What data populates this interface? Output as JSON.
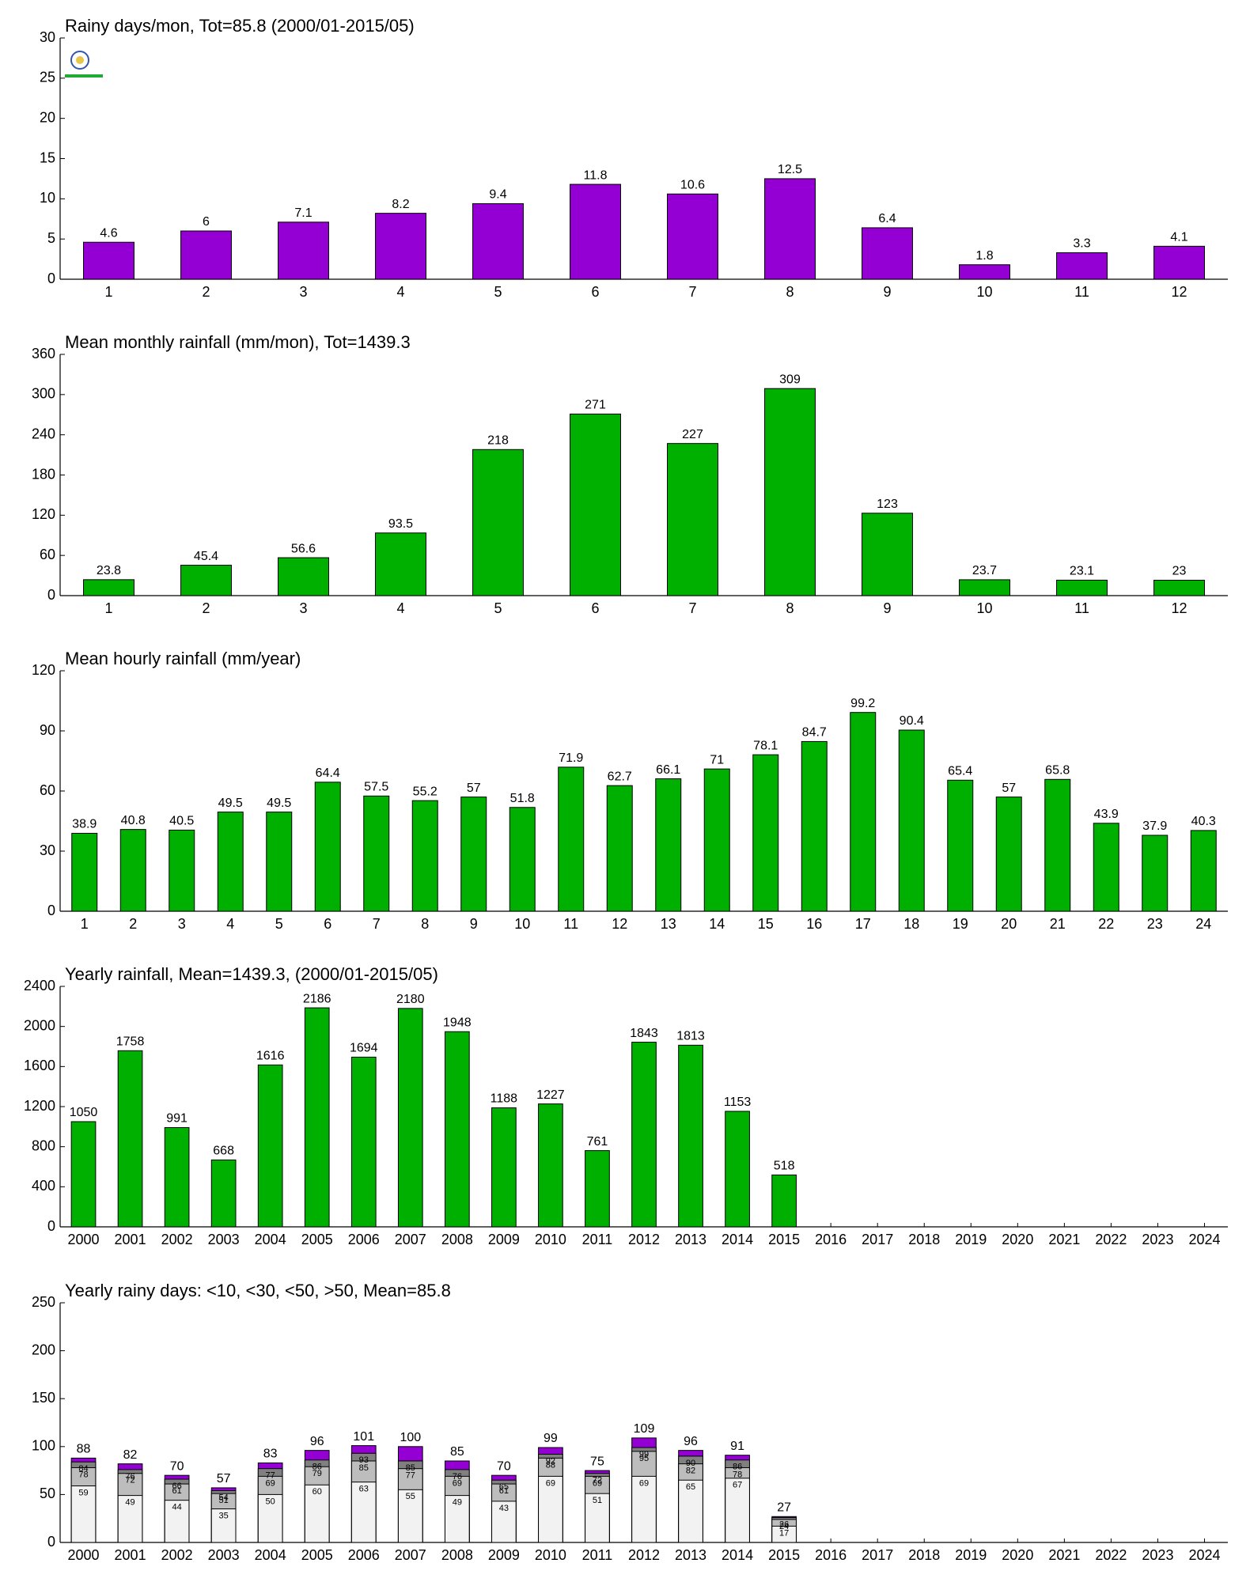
{
  "chart_data": [
    {
      "type": "bar",
      "title": "Rainy days/mon, Tot=85.8 (2000/01-2015/05)",
      "categories": [
        "1",
        "2",
        "3",
        "4",
        "5",
        "6",
        "7",
        "8",
        "9",
        "10",
        "11",
        "12"
      ],
      "values": [
        4.6,
        6,
        7.1,
        8.2,
        9.4,
        11.8,
        10.6,
        12.5,
        6.4,
        1.8,
        3.3,
        4.1
      ],
      "color": "#9400d3",
      "ylim": [
        0,
        30
      ],
      "yticks": [
        0,
        5,
        10,
        15,
        20,
        25,
        30
      ]
    },
    {
      "type": "bar",
      "title": "Mean monthly rainfall (mm/mon), Tot=1439.3",
      "categories": [
        "1",
        "2",
        "3",
        "4",
        "5",
        "6",
        "7",
        "8",
        "9",
        "10",
        "11",
        "12"
      ],
      "values": [
        23.8,
        45.4,
        56.6,
        93.5,
        218,
        271,
        227,
        309,
        123,
        23.7,
        23.1,
        23
      ],
      "color": "#00b000",
      "ylim": [
        0,
        360
      ],
      "yticks": [
        0,
        60,
        120,
        180,
        240,
        300,
        360
      ]
    },
    {
      "type": "bar",
      "title": "Mean hourly rainfall (mm/year)",
      "categories": [
        "1",
        "2",
        "3",
        "4",
        "5",
        "6",
        "7",
        "8",
        "9",
        "10",
        "11",
        "12",
        "13",
        "14",
        "15",
        "16",
        "17",
        "18",
        "19",
        "20",
        "21",
        "22",
        "23",
        "24"
      ],
      "values": [
        38.9,
        40.8,
        40.5,
        49.5,
        49.5,
        64.4,
        57.5,
        55.2,
        57,
        51.8,
        71.9,
        62.7,
        66.1,
        71,
        78.1,
        84.7,
        99.2,
        90.4,
        65.4,
        57,
        65.8,
        43.9,
        37.9,
        40.3
      ],
      "color": "#00b000",
      "ylim": [
        0,
        120
      ],
      "yticks": [
        0,
        30,
        60,
        90,
        120
      ]
    },
    {
      "type": "bar",
      "title": "Yearly rainfall, Mean=1439.3, (2000/01-2015/05)",
      "categories": [
        "2000",
        "2001",
        "2002",
        "2003",
        "2004",
        "2005",
        "2006",
        "2007",
        "2008",
        "2009",
        "2010",
        "2011",
        "2012",
        "2013",
        "2014",
        "2015",
        "2016",
        "2017",
        "2018",
        "2019",
        "2020",
        "2021",
        "2022",
        "2023",
        "2024"
      ],
      "values": [
        1050,
        1758,
        991,
        668,
        1616,
        2186,
        1694,
        2180,
        1948,
        1188,
        1227,
        761,
        1843,
        1813,
        1153,
        518,
        null,
        null,
        null,
        null,
        null,
        null,
        null,
        null,
        null
      ],
      "color": "#00b000",
      "ylim": [
        0,
        2400
      ],
      "yticks": [
        0,
        400,
        800,
        1200,
        1600,
        2000,
        2400
      ]
    },
    {
      "type": "bar",
      "title": "Yearly rainy days: <10, <30, <50, >50, Mean=85.8",
      "categories": [
        "2000",
        "2001",
        "2002",
        "2003",
        "2004",
        "2005",
        "2006",
        "2007",
        "2008",
        "2009",
        "2010",
        "2011",
        "2012",
        "2013",
        "2014",
        "2015",
        "2016",
        "2017",
        "2018",
        "2019",
        "2020",
        "2021",
        "2022",
        "2023",
        "2024"
      ],
      "overlap": true,
      "series": [
        {
          "color": "#9400d3",
          "values": [
            88,
            82,
            70,
            57,
            83,
            96,
            101,
            100,
            85,
            70,
            99,
            75,
            109,
            96,
            91,
            27,
            null,
            null,
            null,
            null,
            null,
            null,
            null,
            null,
            null
          ]
        },
        {
          "color": "#808080",
          "values": [
            84,
            76,
            66,
            54,
            77,
            86,
            93,
            85,
            76,
            65,
            92,
            72,
            99,
            90,
            86,
            26,
            null,
            null,
            null,
            null,
            null,
            null,
            null,
            null,
            null
          ]
        },
        {
          "color": "#bdbdbd",
          "values": [
            78,
            72,
            61,
            51,
            69,
            79,
            85,
            77,
            69,
            61,
            88,
            69,
            95,
            82,
            78,
            24,
            null,
            null,
            null,
            null,
            null,
            null,
            null,
            null,
            null
          ]
        },
        {
          "color": "#f2f2f2",
          "values": [
            59,
            49,
            44,
            35,
            50,
            60,
            63,
            55,
            49,
            43,
            69,
            51,
            69,
            65,
            67,
            17,
            null,
            null,
            null,
            null,
            null,
            null,
            null,
            null,
            null
          ]
        }
      ],
      "ylim": [
        0,
        250
      ],
      "yticks": [
        0,
        50,
        100,
        150,
        200,
        250
      ]
    }
  ]
}
